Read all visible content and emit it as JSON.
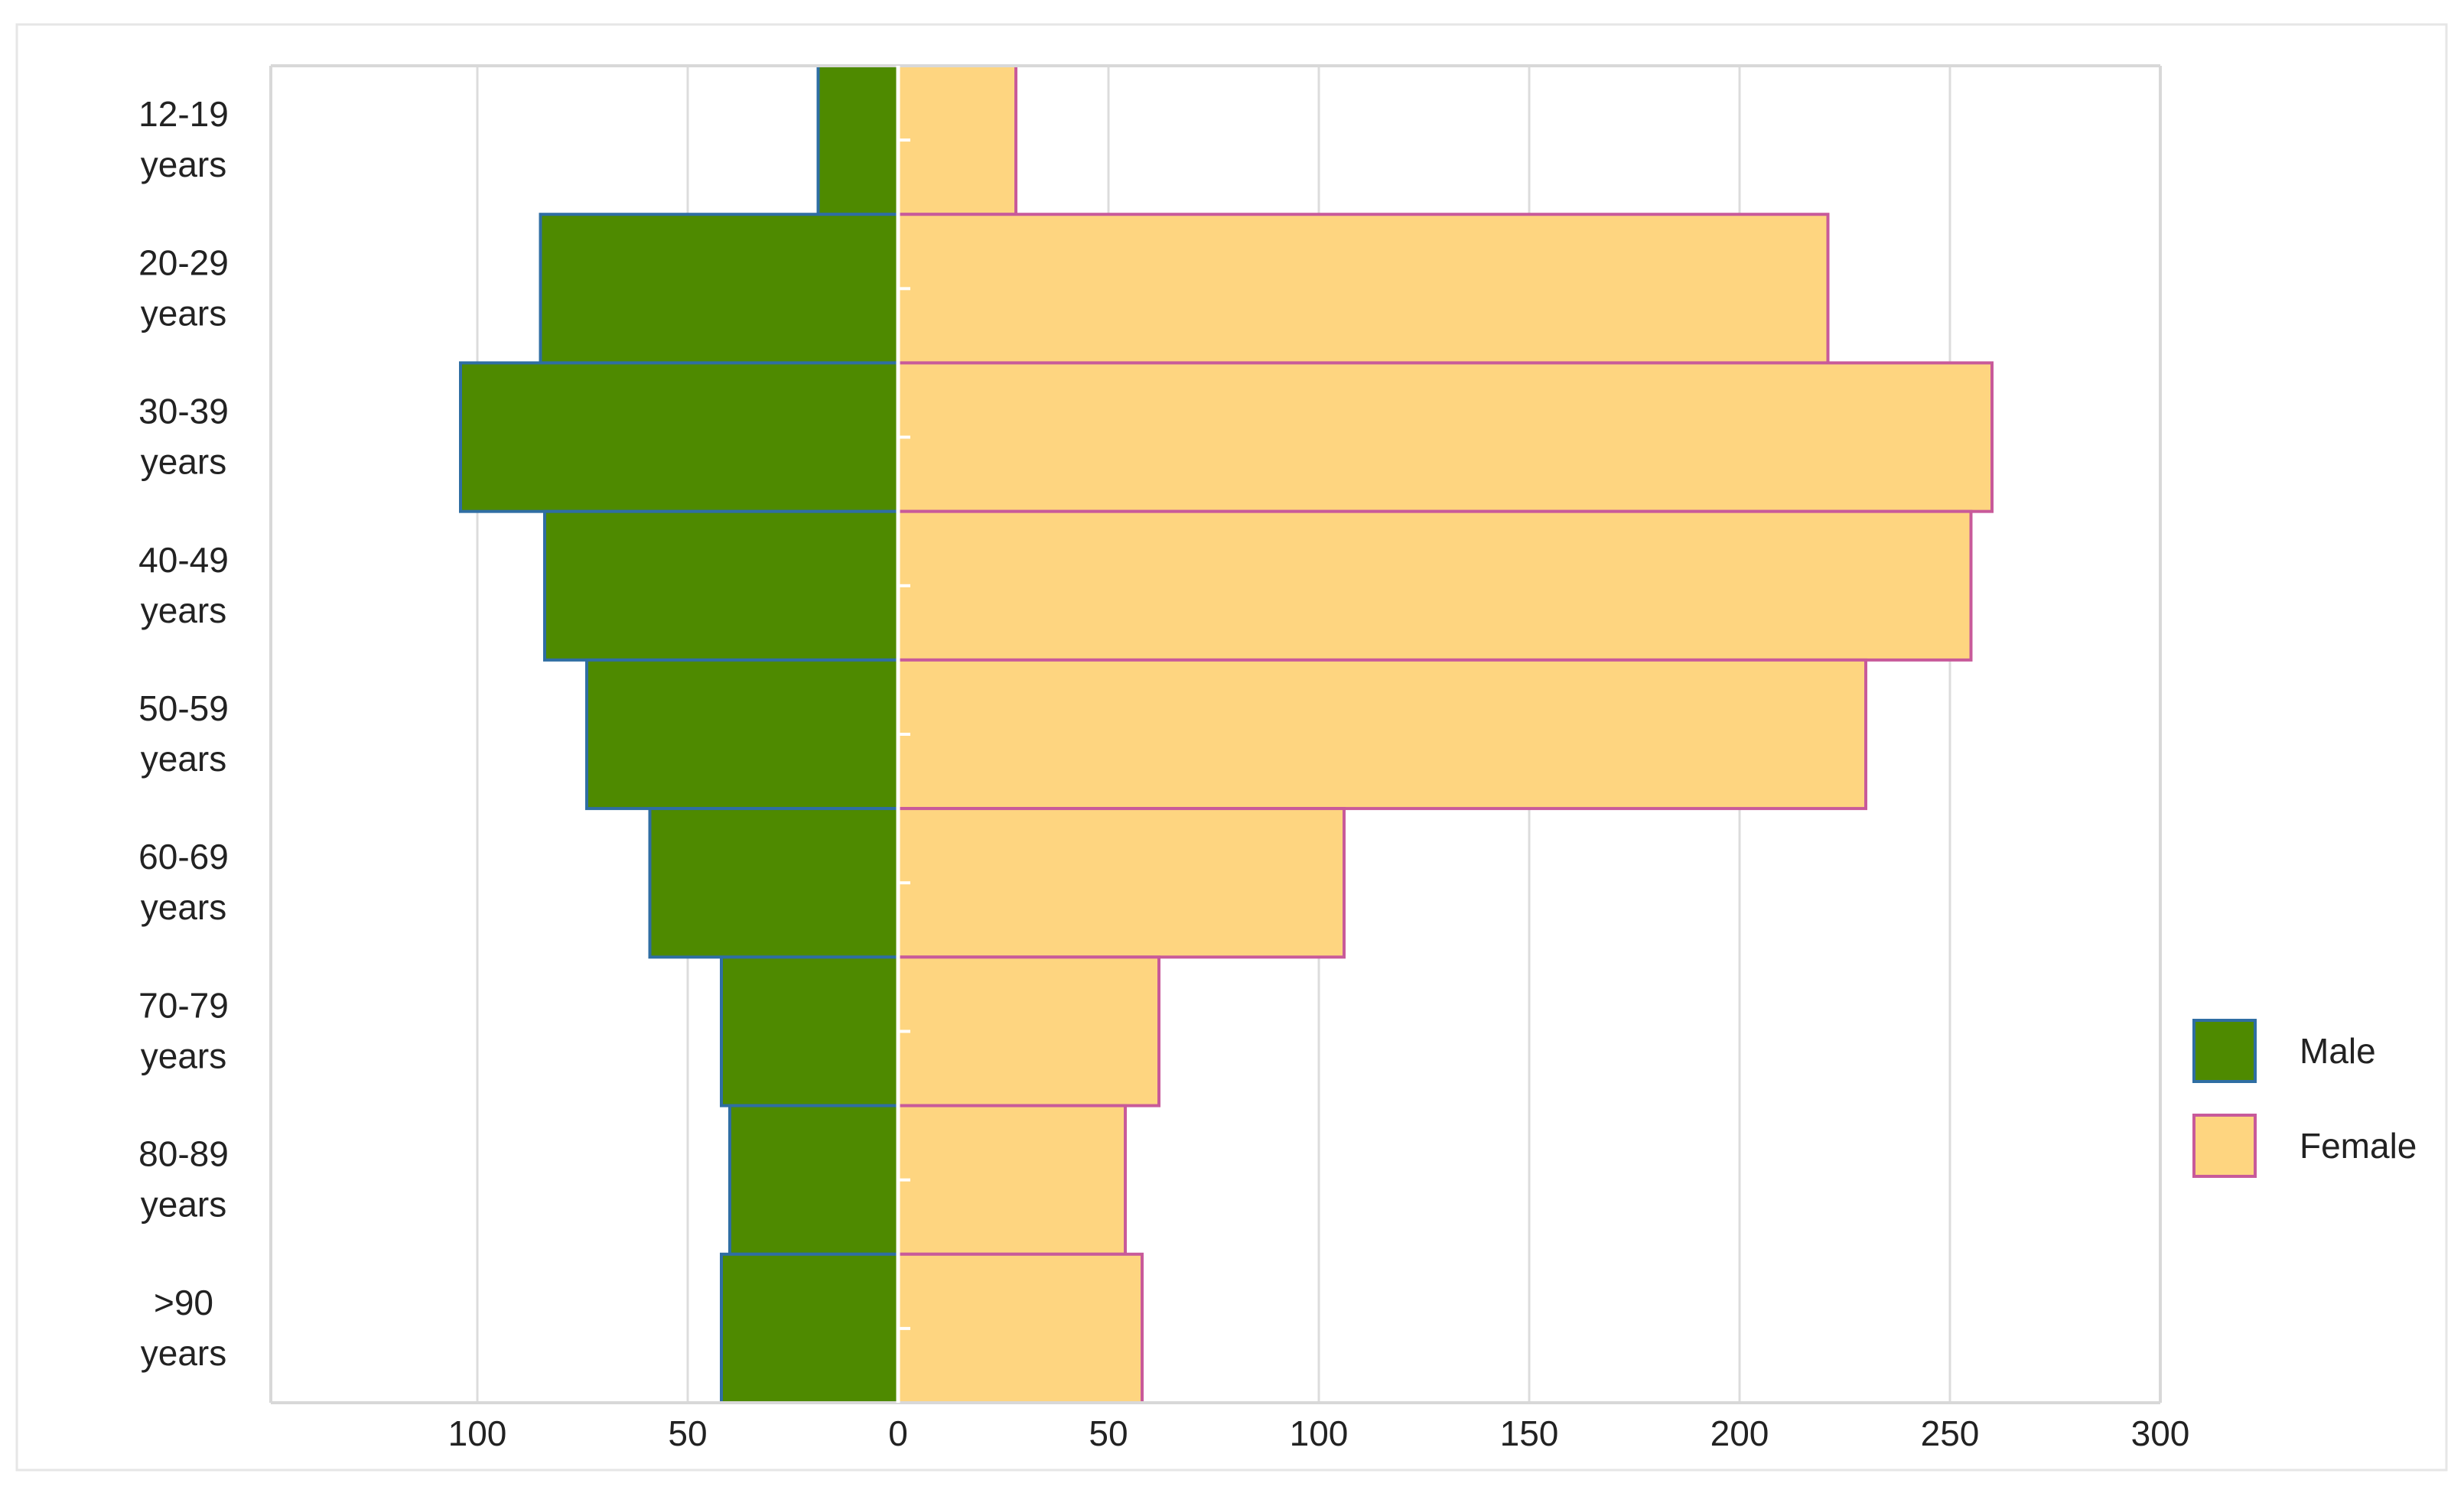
{
  "chart_data": {
    "type": "bar",
    "orientation": "horizontal-population-pyramid",
    "categories": [
      "12-19 years",
      "20-29 years",
      "30-39 years",
      "40-49 years",
      "50-59 years",
      "60-69 years",
      "70-79 years",
      "80-89 years",
      ">90 years"
    ],
    "category_lines": [
      [
        "12-19",
        "years"
      ],
      [
        "20-29",
        "years"
      ],
      [
        "30-39",
        "years"
      ],
      [
        "40-49",
        "years"
      ],
      [
        "50-59",
        "years"
      ],
      [
        "60-69",
        "years"
      ],
      [
        "70-79",
        "years"
      ],
      [
        "80-89",
        "years"
      ],
      [
        ">90",
        "years"
      ]
    ],
    "series": [
      {
        "name": "Male",
        "side": "left",
        "color": "#4e8a00",
        "stroke": "#2f6ea3",
        "values": [
          19,
          85,
          104,
          84,
          74,
          59,
          42,
          40,
          42
        ]
      },
      {
        "name": "Female",
        "side": "right",
        "color": "#fed580",
        "stroke": "#c85a9a",
        "values": [
          28,
          221,
          260,
          255,
          230,
          106,
          62,
          54,
          58
        ]
      }
    ],
    "x_ticks": [
      {
        "value": -100,
        "label": "100"
      },
      {
        "value": -50,
        "label": "50"
      },
      {
        "value": 0,
        "label": "0"
      },
      {
        "value": 50,
        "label": "50"
      },
      {
        "value": 100,
        "label": "100"
      },
      {
        "value": 150,
        "label": "150"
      },
      {
        "value": 200,
        "label": "200"
      },
      {
        "value": 250,
        "label": "250"
      },
      {
        "value": 300,
        "label": "300"
      }
    ],
    "xlim": [
      -150,
      300
    ],
    "grid": true,
    "legend_position": "right",
    "gridline_color": "#dcdcdc",
    "frame_color": "#d8d8d8",
    "text_color": "#222222",
    "title": "",
    "xlabel": "",
    "ylabel": ""
  }
}
